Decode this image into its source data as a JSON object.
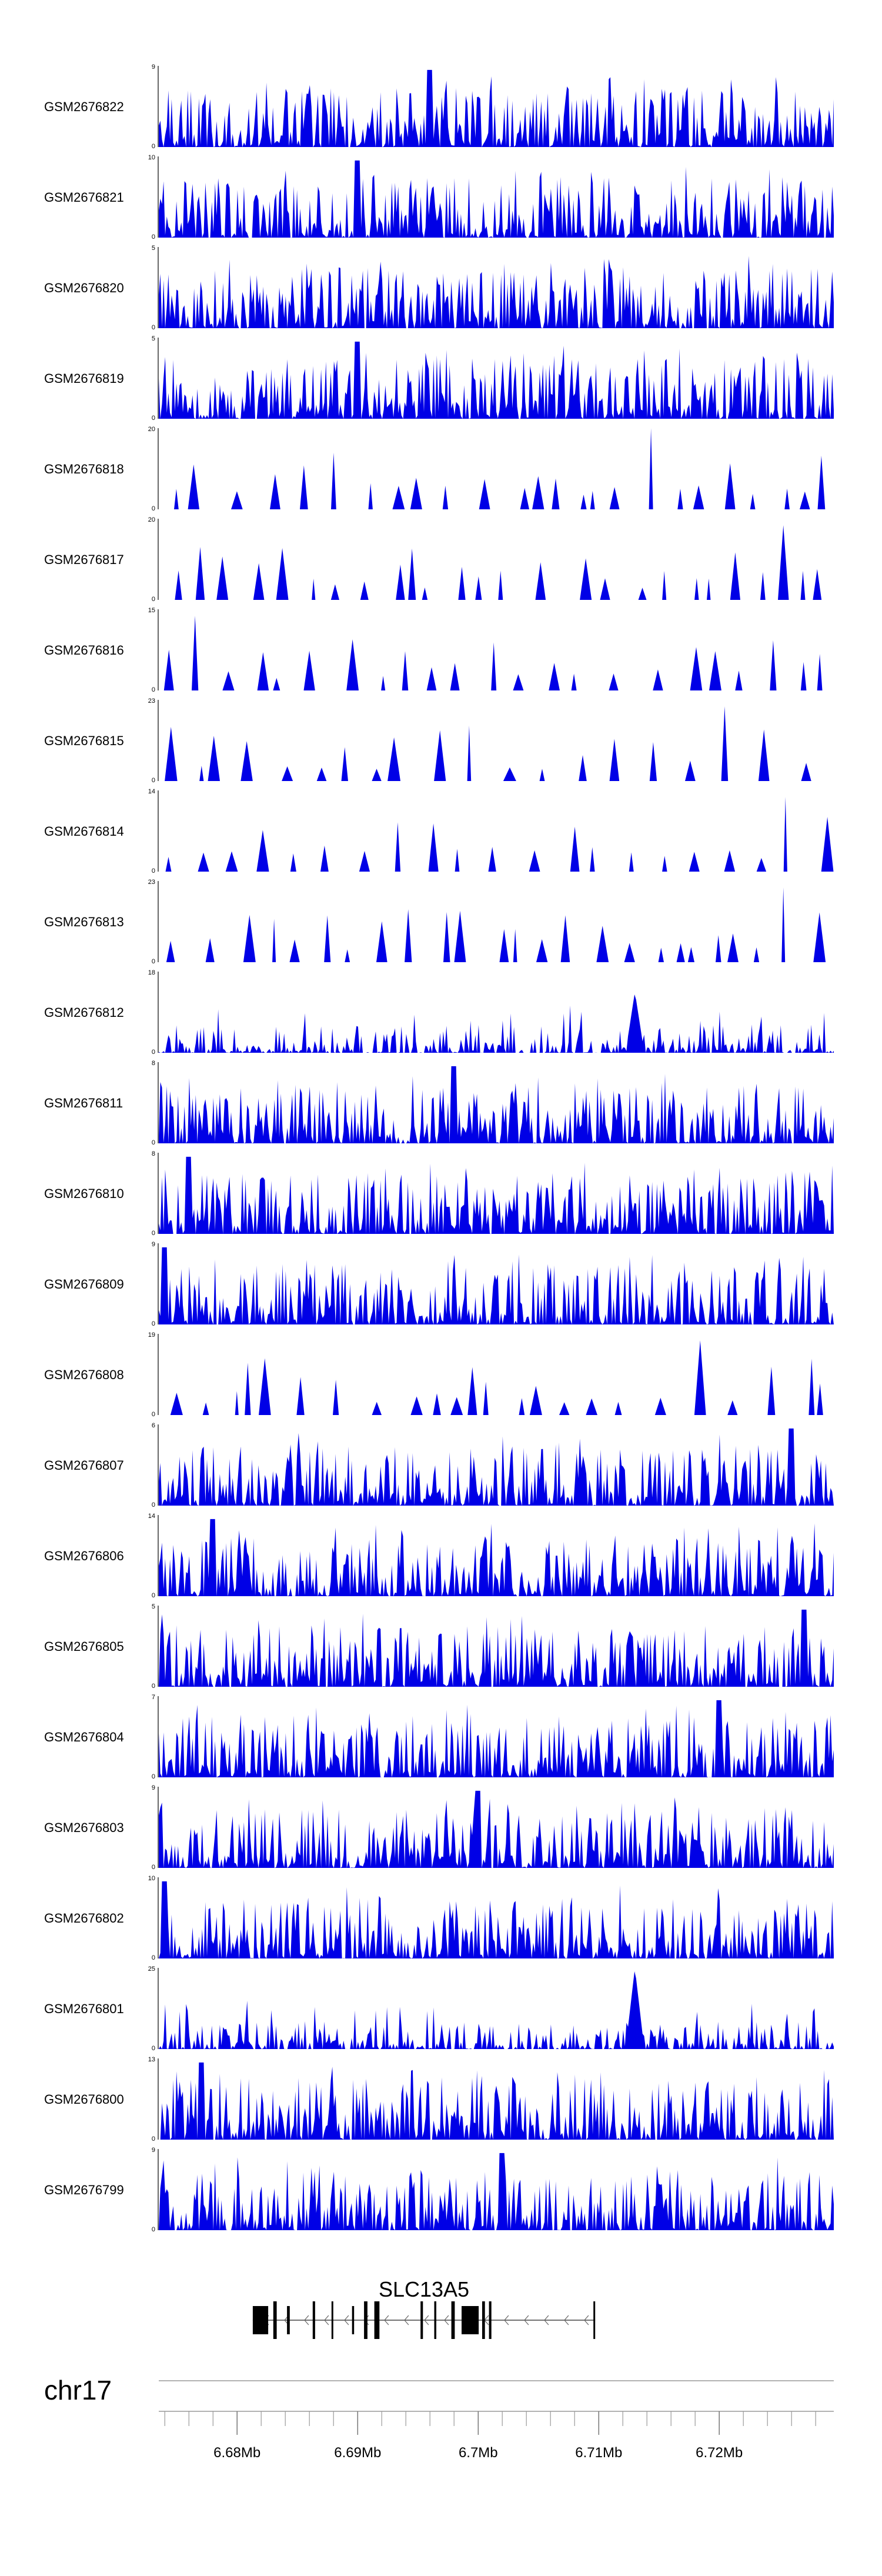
{
  "chart_data": {
    "type": "area",
    "title": "",
    "region": {
      "chromosome": "chr17",
      "xlim_mb": [
        6.6735,
        6.7295
      ]
    },
    "tracks": [
      {
        "name": "GSM2676822",
        "ymax": "9",
        "ymin": "0",
        "color": "#0000e6"
      },
      {
        "name": "GSM2676821",
        "ymax": "10",
        "ymin": "0",
        "color": "#0000e6"
      },
      {
        "name": "GSM2676820",
        "ymax": "5",
        "ymin": "0",
        "color": "#0000e6"
      },
      {
        "name": "GSM2676819",
        "ymax": "5",
        "ymin": "0",
        "color": "#0000e6"
      },
      {
        "name": "GSM2676818",
        "ymax": "20",
        "ymin": "0",
        "color": "#0000e6"
      },
      {
        "name": "GSM2676817",
        "ymax": "20",
        "ymin": "0",
        "color": "#0000e6"
      },
      {
        "name": "GSM2676816",
        "ymax": "15",
        "ymin": "0",
        "color": "#0000e6"
      },
      {
        "name": "GSM2676815",
        "ymax": "23",
        "ymin": "0",
        "color": "#0000e6"
      },
      {
        "name": "GSM2676814",
        "ymax": "14",
        "ymin": "0",
        "color": "#0000e6"
      },
      {
        "name": "GSM2676813",
        "ymax": "23",
        "ymin": "0",
        "color": "#0000e6"
      },
      {
        "name": "GSM2676812",
        "ymax": "18",
        "ymin": "0",
        "color": "#0000e6"
      },
      {
        "name": "GSM2676811",
        "ymax": "8",
        "ymin": "0",
        "color": "#0000e6"
      },
      {
        "name": "GSM2676810",
        "ymax": "8",
        "ymin": "0",
        "color": "#0000e6"
      },
      {
        "name": "GSM2676809",
        "ymax": "9",
        "ymin": "0",
        "color": "#0000e6"
      },
      {
        "name": "GSM2676808",
        "ymax": "19",
        "ymin": "0",
        "color": "#0000e6"
      },
      {
        "name": "GSM2676807",
        "ymax": "6",
        "ymin": "0",
        "color": "#0000e6"
      },
      {
        "name": "GSM2676806",
        "ymax": "14",
        "ymin": "0",
        "color": "#0000e6"
      },
      {
        "name": "GSM2676805",
        "ymax": "5",
        "ymin": "0",
        "color": "#0000e6"
      },
      {
        "name": "GSM2676804",
        "ymax": "7",
        "ymin": "0",
        "color": "#0000e6"
      },
      {
        "name": "GSM2676803",
        "ymax": "9",
        "ymin": "0",
        "color": "#0000e6"
      },
      {
        "name": "GSM2676802",
        "ymax": "10",
        "ymin": "0",
        "color": "#0000e6"
      },
      {
        "name": "GSM2676801",
        "ymax": "25",
        "ymin": "0",
        "color": "#0000e6"
      },
      {
        "name": "GSM2676800",
        "ymax": "13",
        "ymin": "0",
        "color": "#0000e6"
      },
      {
        "name": "GSM2676799",
        "ymax": "9",
        "ymin": "0",
        "color": "#0000e6"
      }
    ],
    "gene": {
      "name": "SLC13A5",
      "start_mb": 6.6813,
      "end_mb": 6.7097,
      "strand": "-"
    },
    "x_axis": {
      "label_format": "Mb",
      "tick_labels": [
        {
          "value": 6.68,
          "label": "6.68Mb"
        },
        {
          "value": 6.69,
          "label": "6.69Mb"
        },
        {
          "value": 6.7,
          "label": "6.7Mb"
        },
        {
          "value": 6.71,
          "label": "6.71Mb"
        },
        {
          "value": 6.72,
          "label": "6.72Mb"
        }
      ]
    }
  }
}
